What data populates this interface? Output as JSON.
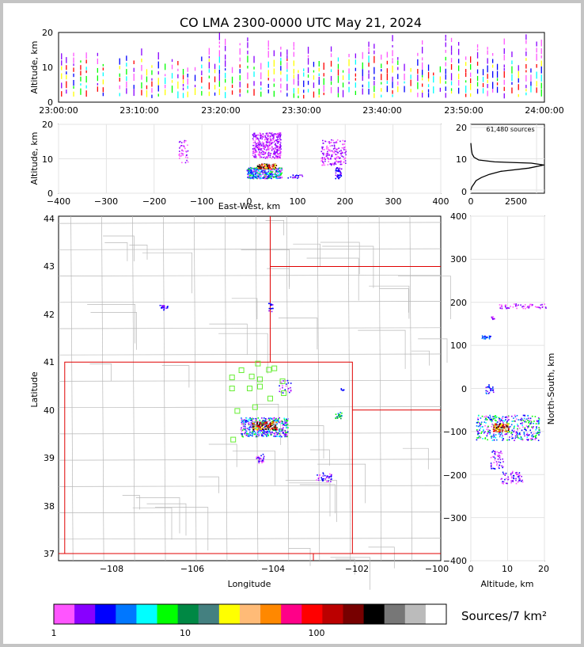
{
  "title": "CO LMA 2300-0000 UTC May 21, 2024",
  "time_panel": {
    "ylabel": "Altitude, km",
    "yticks": [
      "0",
      "10",
      "20"
    ],
    "xticks": [
      "23:00:00",
      "23:10:00",
      "23:20:00",
      "23:30:00",
      "23:40:00",
      "23:50:00",
      "24:00:00"
    ]
  },
  "ew_panel": {
    "ylabel": "Altitude, km",
    "xlabel": "East-West, km",
    "yticks": [
      "0",
      "10",
      "20"
    ],
    "xticks": [
      "−400",
      "−300",
      "−200",
      "−100",
      "0",
      "100",
      "200",
      "300",
      "400"
    ]
  },
  "hist_panel": {
    "annotation": "61,480 sources",
    "yticks": [
      "0",
      "10",
      "20"
    ],
    "xticks": [
      "0",
      "2500"
    ]
  },
  "map_panel": {
    "ylabel": "Latitude",
    "xlabel": "Longitude",
    "yticks": [
      "37",
      "38",
      "39",
      "40",
      "41",
      "42",
      "43",
      "44"
    ],
    "xticks": [
      "−108",
      "−106",
      "−104",
      "−102",
      "−100"
    ]
  },
  "ns_panel": {
    "ylabel": "North-South, km",
    "xlabel": "Altitude, km",
    "yticks": [
      "−400",
      "−300",
      "−200",
      "−100",
      "0",
      "100",
      "200",
      "300",
      "400"
    ],
    "xticks": [
      "0",
      "10",
      "20"
    ]
  },
  "colorbar": {
    "label": "Sources/7 km²",
    "ticks": [
      "1",
      "10",
      "100"
    ],
    "colors": [
      "#ff55ff",
      "#8800ff",
      "#0000ff",
      "#0077ff",
      "#00ffff",
      "#00ff00",
      "#008844",
      "#448080",
      "#ffff00",
      "#ffbb77",
      "#ff8800",
      "#ff0088",
      "#ff0000",
      "#bb0000",
      "#770000",
      "#000000",
      "#777777",
      "#bbbbbb",
      "#ffffff"
    ]
  },
  "chart_data": {
    "type": "heatmap",
    "title": "CO LMA 2300-0000 UTC May 21, 2024",
    "total_sources": 61480,
    "time_axis": {
      "range": [
        "23:00:00",
        "24:00:00"
      ],
      "ylim": [
        0,
        20
      ]
    },
    "ew_axis": {
      "xlim": [
        -400,
        400
      ],
      "ylim": [
        0,
        20
      ]
    },
    "map_axis": {
      "xlim": [
        -109.2,
        -99.9
      ],
      "ylim": [
        36.85,
        44.05
      ]
    },
    "ns_axis": {
      "xlim": [
        0,
        20
      ],
      "ylim": [
        -400,
        400
      ]
    },
    "altitude_histogram": {
      "xlim": [
        0,
        2800
      ],
      "points": [
        [
          0,
          0
        ],
        [
          40,
          1
        ],
        [
          120,
          2
        ],
        [
          200,
          3
        ],
        [
          400,
          4
        ],
        [
          700,
          5
        ],
        [
          1150,
          6
        ],
        [
          2200,
          7
        ],
        [
          2780,
          8
        ],
        [
          2300,
          8.6
        ],
        [
          900,
          9
        ],
        [
          300,
          9.6
        ],
        [
          120,
          10.5
        ],
        [
          50,
          11.5
        ],
        [
          20,
          13
        ],
        [
          0,
          15
        ]
      ]
    },
    "station_markers": [
      [
        -104.35,
        40.97
      ],
      [
        -104.75,
        40.83
      ],
      [
        -104.08,
        40.84
      ],
      [
        -103.95,
        40.87
      ],
      [
        -104.5,
        40.7
      ],
      [
        -104.98,
        40.68
      ],
      [
        -104.3,
        40.64
      ],
      [
        -103.75,
        40.6
      ],
      [
        -104.98,
        40.45
      ],
      [
        -104.55,
        40.45
      ],
      [
        -104.3,
        40.49
      ],
      [
        -103.72,
        40.35
      ],
      [
        -104.05,
        40.24
      ],
      [
        -104.42,
        40.06
      ],
      [
        -104.85,
        39.98
      ],
      [
        -104.95,
        39.38
      ]
    ]
  }
}
